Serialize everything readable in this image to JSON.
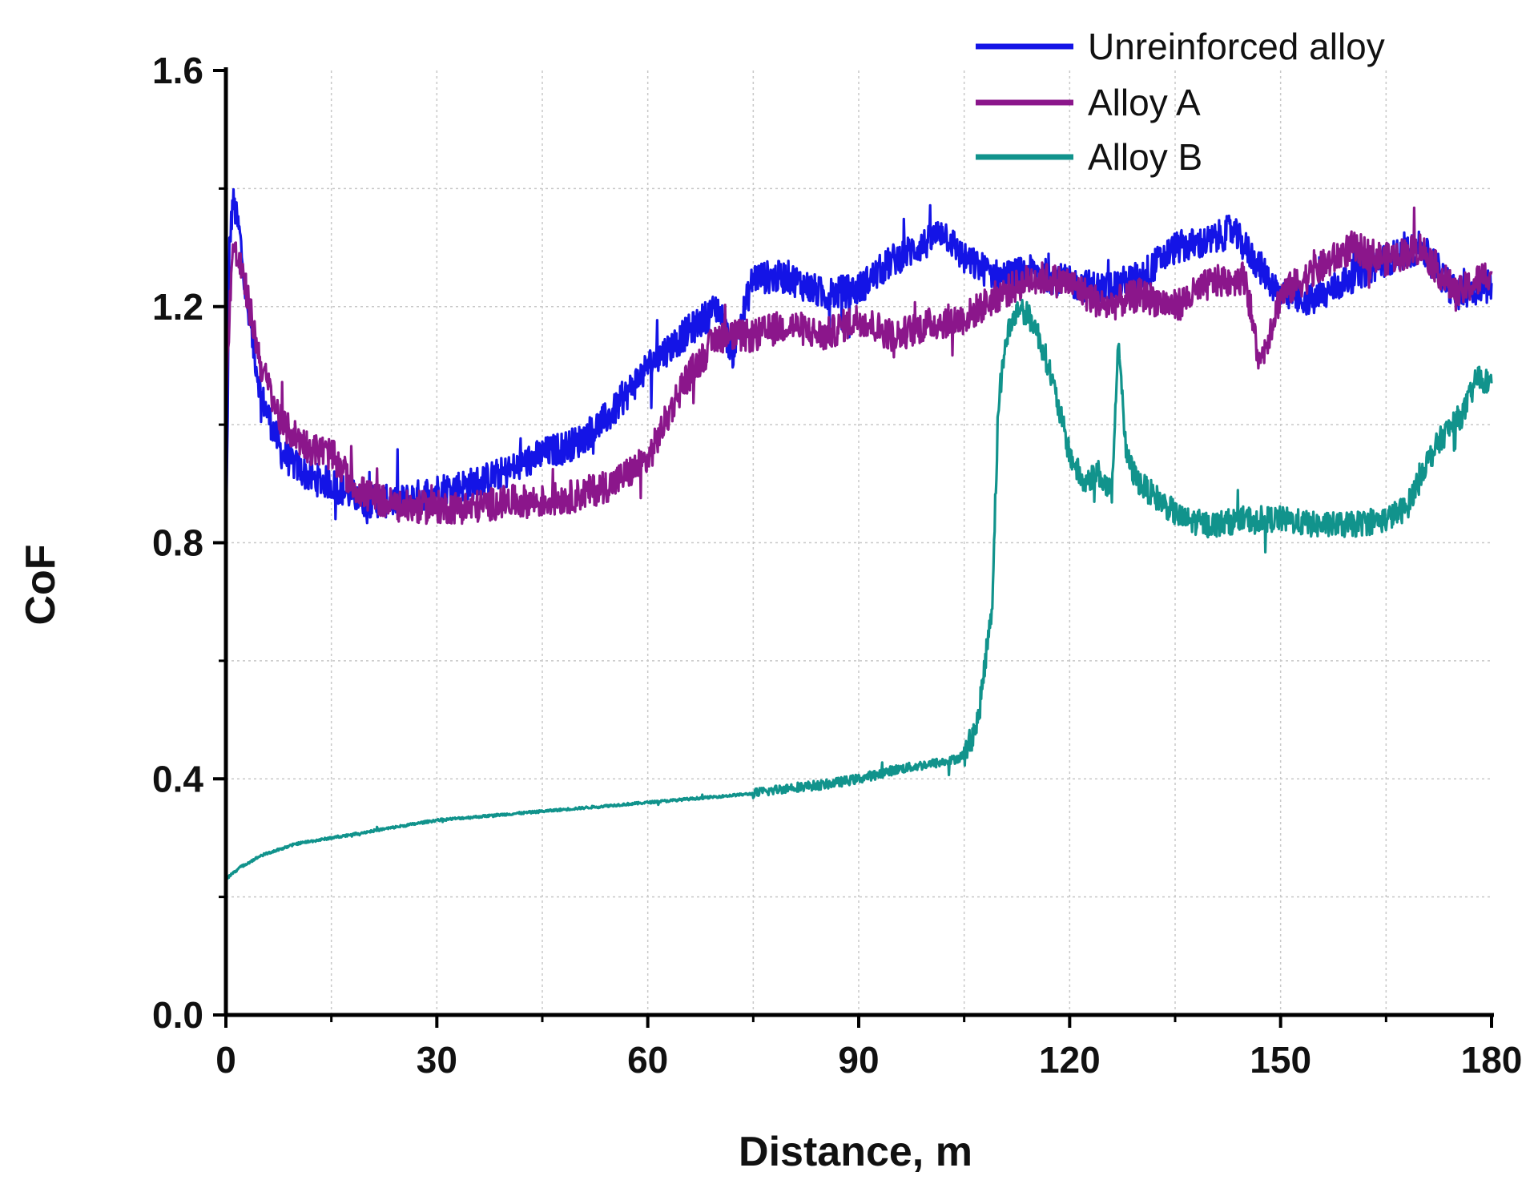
{
  "chart_data": {
    "type": "line",
    "title": "",
    "xlabel": "Distance, m",
    "ylabel": "CoF",
    "xlim": [
      0,
      180
    ],
    "ylim": [
      0,
      1.6
    ],
    "x_ticks": [
      0,
      30,
      60,
      90,
      120,
      150,
      180
    ],
    "x_tick_labels": [
      "0",
      "30",
      "60",
      "90",
      "120",
      "150",
      "180"
    ],
    "y_ticks": [
      0.0,
      0.4,
      0.8,
      1.2,
      1.6
    ],
    "y_tick_labels": [
      "0.0",
      "0.4",
      "0.8",
      "1.2",
      "1.6"
    ],
    "grid": true,
    "legend_position": "top-right",
    "series": [
      {
        "name": "Unreinforced alloy",
        "color": "#1414e6",
        "x": [
          0,
          0.5,
          1,
          2,
          3,
          5,
          8,
          10,
          12,
          15,
          18,
          20,
          25,
          30,
          35,
          40,
          45,
          50,
          55,
          60,
          65,
          70,
          72,
          75,
          80,
          85,
          90,
          95,
          100,
          102,
          105,
          110,
          115,
          120,
          125,
          130,
          135,
          140,
          143,
          145,
          150,
          155,
          160,
          165,
          170,
          175,
          180
        ],
        "values": [
          0.76,
          1.3,
          1.38,
          1.32,
          1.2,
          1.05,
          0.95,
          0.93,
          0.91,
          0.9,
          0.88,
          0.87,
          0.87,
          0.89,
          0.9,
          0.92,
          0.95,
          0.97,
          1.02,
          1.1,
          1.15,
          1.2,
          1.12,
          1.25,
          1.25,
          1.22,
          1.23,
          1.28,
          1.31,
          1.33,
          1.28,
          1.25,
          1.26,
          1.24,
          1.23,
          1.25,
          1.3,
          1.31,
          1.33,
          1.3,
          1.22,
          1.21,
          1.25,
          1.28,
          1.3,
          1.22,
          1.24
        ]
      },
      {
        "name": "Alloy A",
        "color": "#8b168b",
        "x": [
          0,
          0.5,
          1,
          2,
          3,
          5,
          8,
          10,
          12,
          15,
          18,
          20,
          25,
          30,
          35,
          40,
          45,
          50,
          55,
          60,
          65,
          70,
          75,
          80,
          85,
          90,
          95,
          100,
          105,
          110,
          115,
          120,
          125,
          130,
          135,
          140,
          145,
          147,
          150,
          155,
          160,
          165,
          170,
          175,
          180
        ],
        "values": [
          1.0,
          1.2,
          1.3,
          1.27,
          1.22,
          1.1,
          1.0,
          0.98,
          0.96,
          0.95,
          0.9,
          0.88,
          0.86,
          0.86,
          0.86,
          0.87,
          0.87,
          0.88,
          0.9,
          0.94,
          1.07,
          1.15,
          1.15,
          1.17,
          1.15,
          1.18,
          1.15,
          1.17,
          1.18,
          1.22,
          1.25,
          1.24,
          1.2,
          1.22,
          1.2,
          1.24,
          1.25,
          1.1,
          1.22,
          1.26,
          1.3,
          1.28,
          1.3,
          1.22,
          1.26
        ]
      },
      {
        "name": "Alloy B",
        "color": "#11938c",
        "x": [
          0,
          2,
          5,
          10,
          15,
          20,
          25,
          30,
          35,
          40,
          45,
          50,
          55,
          60,
          65,
          70,
          75,
          80,
          85,
          90,
          95,
          100,
          103,
          105,
          107,
          108,
          109,
          109.5,
          110,
          110.5,
          111,
          112,
          113,
          115,
          117,
          118,
          120,
          122,
          124,
          126,
          127,
          128,
          129,
          130,
          133,
          136,
          140,
          145,
          150,
          155,
          160,
          165,
          168,
          170,
          173,
          176,
          178,
          180
        ],
        "values": [
          0.23,
          0.25,
          0.27,
          0.29,
          0.3,
          0.31,
          0.32,
          0.33,
          0.335,
          0.34,
          0.345,
          0.35,
          0.355,
          0.36,
          0.365,
          0.37,
          0.375,
          0.385,
          0.39,
          0.4,
          0.415,
          0.425,
          0.43,
          0.44,
          0.5,
          0.6,
          0.7,
          0.9,
          1.05,
          1.1,
          1.15,
          1.18,
          1.2,
          1.17,
          1.1,
          1.05,
          0.95,
          0.9,
          0.92,
          0.88,
          1.15,
          0.95,
          0.92,
          0.9,
          0.87,
          0.84,
          0.83,
          0.84,
          0.84,
          0.83,
          0.83,
          0.84,
          0.86,
          0.92,
          0.98,
          1.02,
          1.08,
          1.07
        ]
      }
    ]
  }
}
